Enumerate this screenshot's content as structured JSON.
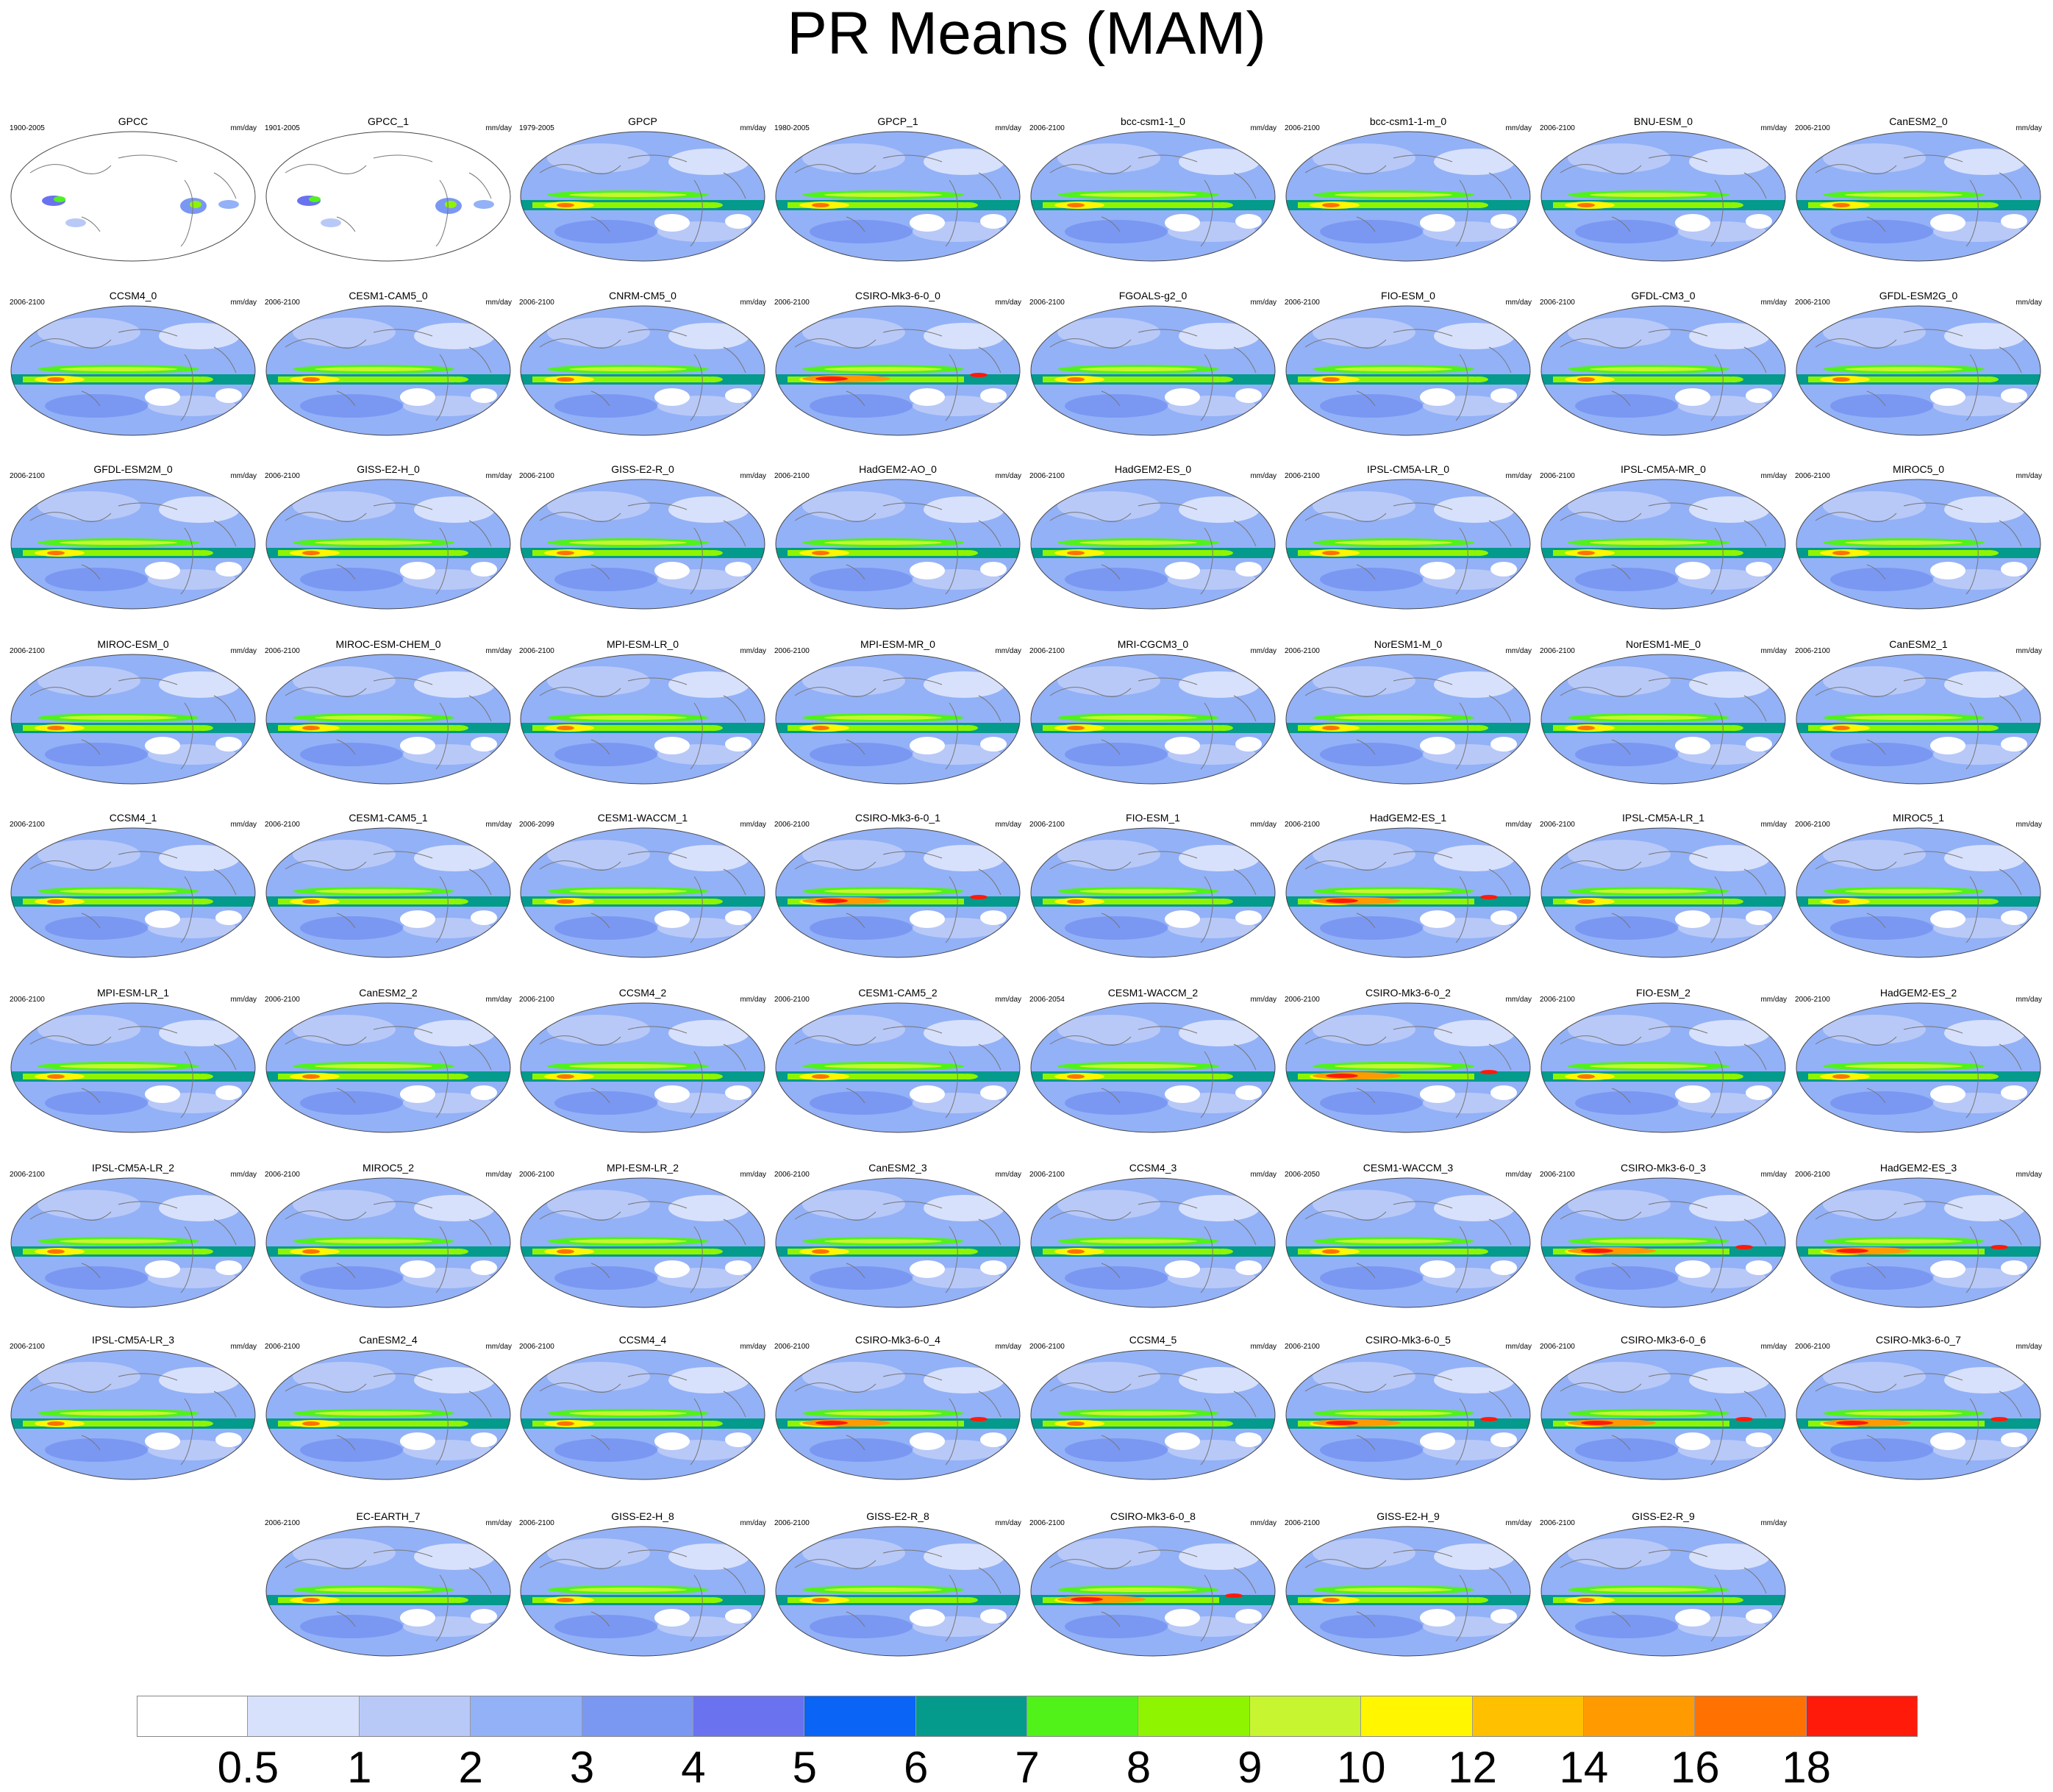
{
  "figure": {
    "title": "PR Means (MAM)",
    "units": "mm/day"
  },
  "panels": [
    {
      "name": "GPCC",
      "period": "1900-2005",
      "style": "obs-land"
    },
    {
      "name": "GPCC_1",
      "period": "1901-2005",
      "style": "obs-land"
    },
    {
      "name": "GPCP",
      "period": "1979-2005",
      "style": "obs"
    },
    {
      "name": "GPCP_1",
      "period": "1980-2005",
      "style": "obs"
    },
    {
      "name": "bcc-csm1-1_0",
      "period": "2006-2100",
      "style": "model"
    },
    {
      "name": "bcc-csm1-1-m_0",
      "period": "2006-2100",
      "style": "model"
    },
    {
      "name": "BNU-ESM_0",
      "period": "2006-2100",
      "style": "model"
    },
    {
      "name": "CanESM2_0",
      "period": "2006-2100",
      "style": "model"
    },
    {
      "name": "CCSM4_0",
      "period": "2006-2100",
      "style": "model"
    },
    {
      "name": "CESM1-CAM5_0",
      "period": "2006-2100",
      "style": "model"
    },
    {
      "name": "CNRM-CM5_0",
      "period": "2006-2100",
      "style": "model"
    },
    {
      "name": "CSIRO-Mk3-6-0_0",
      "period": "2006-2100",
      "style": "wet"
    },
    {
      "name": "FGOALS-g2_0",
      "period": "2006-2100",
      "style": "model"
    },
    {
      "name": "FIO-ESM_0",
      "period": "2006-2100",
      "style": "model"
    },
    {
      "name": "GFDL-CM3_0",
      "period": "2006-2100",
      "style": "model"
    },
    {
      "name": "GFDL-ESM2G_0",
      "period": "2006-2100",
      "style": "model"
    },
    {
      "name": "GFDL-ESM2M_0",
      "period": "2006-2100",
      "style": "model"
    },
    {
      "name": "GISS-E2-H_0",
      "period": "2006-2100",
      "style": "model"
    },
    {
      "name": "GISS-E2-R_0",
      "period": "2006-2100",
      "style": "model"
    },
    {
      "name": "HadGEM2-AO_0",
      "period": "2006-2100",
      "style": "model"
    },
    {
      "name": "HadGEM2-ES_0",
      "period": "2006-2100",
      "style": "model"
    },
    {
      "name": "IPSL-CM5A-LR_0",
      "period": "2006-2100",
      "style": "model"
    },
    {
      "name": "IPSL-CM5A-MR_0",
      "period": "2006-2100",
      "style": "model"
    },
    {
      "name": "MIROC5_0",
      "period": "2006-2100",
      "style": "model"
    },
    {
      "name": "MIROC-ESM_0",
      "period": "2006-2100",
      "style": "model"
    },
    {
      "name": "MIROC-ESM-CHEM_0",
      "period": "2006-2100",
      "style": "model"
    },
    {
      "name": "MPI-ESM-LR_0",
      "period": "2006-2100",
      "style": "model"
    },
    {
      "name": "MPI-ESM-MR_0",
      "period": "2006-2100",
      "style": "model"
    },
    {
      "name": "MRI-CGCM3_0",
      "period": "2006-2100",
      "style": "model"
    },
    {
      "name": "NorESM1-M_0",
      "period": "2006-2100",
      "style": "model"
    },
    {
      "name": "NorESM1-ME_0",
      "period": "2006-2100",
      "style": "model"
    },
    {
      "name": "CanESM2_1",
      "period": "2006-2100",
      "style": "model"
    },
    {
      "name": "CCSM4_1",
      "period": "2006-2100",
      "style": "model"
    },
    {
      "name": "CESM1-CAM5_1",
      "period": "2006-2100",
      "style": "model"
    },
    {
      "name": "CESM1-WACCM_1",
      "period": "2006-2099",
      "style": "model"
    },
    {
      "name": "CSIRO-Mk3-6-0_1",
      "period": "2006-2100",
      "style": "wet"
    },
    {
      "name": "FIO-ESM_1",
      "period": "2006-2100",
      "style": "model"
    },
    {
      "name": "HadGEM2-ES_1",
      "period": "2006-2100",
      "style": "wet"
    },
    {
      "name": "IPSL-CM5A-LR_1",
      "period": "2006-2100",
      "style": "model"
    },
    {
      "name": "MIROC5_1",
      "period": "2006-2100",
      "style": "model"
    },
    {
      "name": "MPI-ESM-LR_1",
      "period": "2006-2100",
      "style": "model"
    },
    {
      "name": "CanESM2_2",
      "period": "2006-2100",
      "style": "model"
    },
    {
      "name": "CCSM4_2",
      "period": "2006-2100",
      "style": "model"
    },
    {
      "name": "CESM1-CAM5_2",
      "period": "2006-2100",
      "style": "model"
    },
    {
      "name": "CESM1-WACCM_2",
      "period": "2006-2054",
      "style": "model"
    },
    {
      "name": "CSIRO-Mk3-6-0_2",
      "period": "2006-2100",
      "style": "wet"
    },
    {
      "name": "FIO-ESM_2",
      "period": "2006-2100",
      "style": "model"
    },
    {
      "name": "HadGEM2-ES_2",
      "period": "2006-2100",
      "style": "model"
    },
    {
      "name": "IPSL-CM5A-LR_2",
      "period": "2006-2100",
      "style": "model"
    },
    {
      "name": "MIROC5_2",
      "period": "2006-2100",
      "style": "model"
    },
    {
      "name": "MPI-ESM-LR_2",
      "period": "2006-2100",
      "style": "model"
    },
    {
      "name": "CanESM2_3",
      "period": "2006-2100",
      "style": "model"
    },
    {
      "name": "CCSM4_3",
      "period": "2006-2100",
      "style": "model"
    },
    {
      "name": "CESM1-WACCM_3",
      "period": "2006-2050",
      "style": "model"
    },
    {
      "name": "CSIRO-Mk3-6-0_3",
      "period": "2006-2100",
      "style": "wet"
    },
    {
      "name": "HadGEM2-ES_3",
      "period": "2006-2100",
      "style": "wet"
    },
    {
      "name": "IPSL-CM5A-LR_3",
      "period": "2006-2100",
      "style": "model"
    },
    {
      "name": "CanESM2_4",
      "period": "2006-2100",
      "style": "model"
    },
    {
      "name": "CCSM4_4",
      "period": "2006-2100",
      "style": "model"
    },
    {
      "name": "CSIRO-Mk3-6-0_4",
      "period": "2006-2100",
      "style": "wet"
    },
    {
      "name": "CCSM4_5",
      "period": "2006-2100",
      "style": "model"
    },
    {
      "name": "CSIRO-Mk3-6-0_5",
      "period": "2006-2100",
      "style": "wet"
    },
    {
      "name": "CSIRO-Mk3-6-0_6",
      "period": "2006-2100",
      "style": "wet"
    },
    {
      "name": "CSIRO-Mk3-6-0_7",
      "period": "2006-2100",
      "style": "wet"
    },
    {
      "name": "EC-EARTH_7",
      "period": "2006-2100",
      "style": "model"
    },
    {
      "name": "GISS-E2-H_8",
      "period": "2006-2100",
      "style": "model"
    },
    {
      "name": "GISS-E2-R_8",
      "period": "2006-2100",
      "style": "model"
    },
    {
      "name": "CSIRO-Mk3-6-0_8",
      "period": "2006-2100",
      "style": "wet"
    },
    {
      "name": "GISS-E2-H_9",
      "period": "2006-2100",
      "style": "model"
    },
    {
      "name": "GISS-E2-R_9",
      "period": "2006-2100",
      "style": "model"
    }
  ],
  "colorbar": {
    "colors": [
      "#ffffff",
      "#d8e1fb",
      "#b8c9f8",
      "#93b1f7",
      "#7a98f2",
      "#6a72f0",
      "#0a64f6",
      "#049a8c",
      "#50f21a",
      "#8ef400",
      "#c7f52f",
      "#fff600",
      "#ffc000",
      "#ff9b00",
      "#ff7100",
      "#ff1a0a"
    ],
    "tick_labels": [
      "0.5",
      "1",
      "2",
      "3",
      "4",
      "5",
      "6",
      "7",
      "8",
      "9",
      "10",
      "12",
      "14",
      "16",
      "18"
    ]
  }
}
